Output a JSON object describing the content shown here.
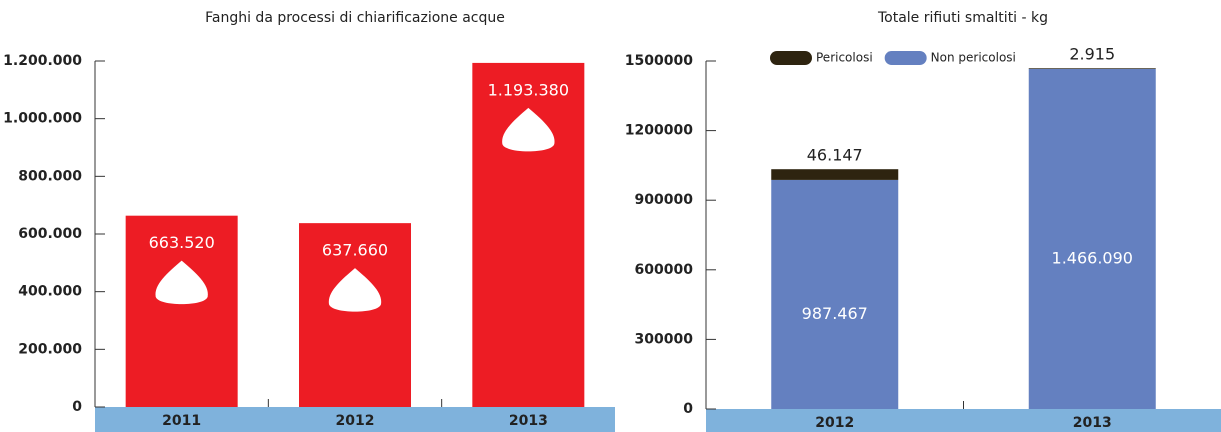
{
  "chart_data": [
    {
      "type": "bar",
      "title": "Fanghi da processi di chiarificazione acque",
      "categories": [
        "2011",
        "2012",
        "2013"
      ],
      "values": [
        663520,
        637660,
        1193380
      ],
      "value_labels": [
        "663.520",
        "637.660",
        "1.193.380"
      ],
      "color": "#ed1c24",
      "ylim": [
        0,
        1200000
      ],
      "yticks": [
        0,
        {
          "value": 200000,
          "label": "200.000"
        },
        {
          "value": 400000,
          "label": "400.000"
        },
        {
          "value": 600000,
          "label": "600.000"
        },
        {
          "value": 800000,
          "label": "800.000"
        },
        {
          "value": 1000000,
          "label": "1.000.000"
        },
        {
          "value": 1200000,
          "label": "1.200.000"
        }
      ]
    },
    {
      "type": "stacked_bar",
      "title": "Totale rifiuti smaltiti - kg",
      "categories": [
        "2012",
        "2013"
      ],
      "series": [
        {
          "name": "Non pericolosi",
          "color": "#6480c0",
          "values": [
            987467,
            1466090
          ],
          "value_labels": [
            "987.467",
            "1.466.090"
          ]
        },
        {
          "name": "Pericolosi",
          "color": "#2e2410",
          "values": [
            46147,
            2915
          ],
          "value_labels": [
            "46.147",
            "2.915"
          ]
        }
      ],
      "ylim": [
        0,
        1500000
      ],
      "yticks": [
        0,
        300000,
        600000,
        900000,
        1200000,
        1500000
      ],
      "legend": "top"
    }
  ]
}
